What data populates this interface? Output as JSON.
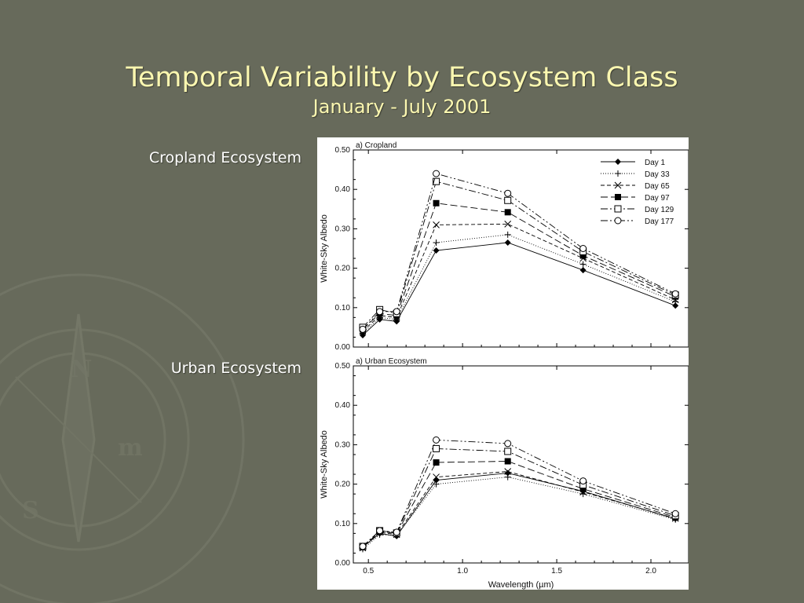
{
  "slide": {
    "title": "Temporal Variability by Ecosystem Class",
    "subtitle": "January - July 2001",
    "labels": {
      "cropland": "Cropland Ecosystem",
      "urban": "Urban Ecosystem"
    }
  },
  "theme": {
    "background": "#676a5b",
    "title_color": "#fbf7b0",
    "label_color": "#ffffff"
  },
  "chart_data": [
    {
      "type": "line",
      "title": "a) Cropland",
      "ylabel": "White-Sky Albedo",
      "xlabel": "",
      "x": [
        0.47,
        0.56,
        0.65,
        0.86,
        1.24,
        1.64,
        2.13
      ],
      "xlim": [
        0.42,
        2.2
      ],
      "ylim": [
        0,
        0.5
      ],
      "yticks": [
        "0.00",
        "0.10",
        "0.20",
        "0.30",
        "0.40",
        "0.50"
      ],
      "legend_position": "top-right",
      "series": [
        {
          "name": "Day 1",
          "values": [
            0.03,
            0.07,
            0.065,
            0.245,
            0.265,
            0.195,
            0.105
          ]
        },
        {
          "name": "Day 33",
          "values": [
            0.035,
            0.075,
            0.07,
            0.265,
            0.285,
            0.21,
            0.115
          ]
        },
        {
          "name": "Day 65",
          "values": [
            0.04,
            0.08,
            0.075,
            0.31,
            0.312,
            0.225,
            0.12
          ]
        },
        {
          "name": "Day 97",
          "values": [
            0.045,
            0.085,
            0.08,
            0.365,
            0.342,
            0.232,
            0.128
          ]
        },
        {
          "name": "Day 129",
          "values": [
            0.05,
            0.095,
            0.085,
            0.42,
            0.372,
            0.242,
            0.132
          ]
        },
        {
          "name": "Day 177",
          "values": [
            0.045,
            0.09,
            0.09,
            0.44,
            0.39,
            0.25,
            0.135
          ]
        }
      ]
    },
    {
      "type": "line",
      "title": "a) Urban Ecosystem",
      "ylabel": "White-Sky Albedo",
      "xlabel": "Wavelength (µm)",
      "x": [
        0.47,
        0.56,
        0.65,
        0.86,
        1.24,
        1.64,
        2.13
      ],
      "xlim": [
        0.42,
        2.2
      ],
      "ylim": [
        0,
        0.5
      ],
      "xticks": [
        "0.5",
        "1.0",
        "1.5",
        "2.0"
      ],
      "yticks": [
        "0.00",
        "0.10",
        "0.20",
        "0.30",
        "0.40",
        "0.50"
      ],
      "series": [
        {
          "name": "Day 1",
          "values": [
            0.04,
            0.075,
            0.068,
            0.21,
            0.228,
            0.182,
            0.112
          ]
        },
        {
          "name": "Day 33",
          "values": [
            0.035,
            0.072,
            0.07,
            0.2,
            0.218,
            0.175,
            0.11
          ]
        },
        {
          "name": "Day 65",
          "values": [
            0.038,
            0.078,
            0.072,
            0.218,
            0.232,
            0.18,
            0.113
          ]
        },
        {
          "name": "Day 97",
          "values": [
            0.04,
            0.08,
            0.075,
            0.255,
            0.258,
            0.188,
            0.116
          ]
        },
        {
          "name": "Day 129",
          "values": [
            0.042,
            0.082,
            0.076,
            0.29,
            0.283,
            0.198,
            0.12
          ]
        },
        {
          "name": "Day 177",
          "values": [
            0.042,
            0.082,
            0.078,
            0.312,
            0.303,
            0.208,
            0.125
          ]
        }
      ]
    }
  ]
}
